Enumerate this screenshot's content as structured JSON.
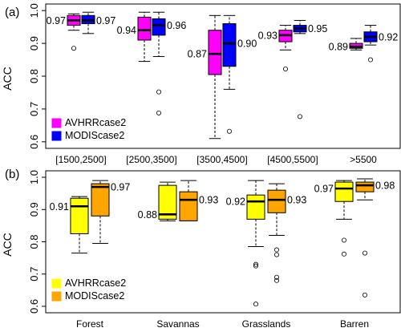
{
  "figure": {
    "panels": [
      {
        "id": "a",
        "label": "(a)",
        "ylabel": "ACC",
        "yticks": [
          "0.6",
          "0.7",
          "0.8",
          "0.9",
          "1.0"
        ],
        "legend": [
          "AVHRRcase2",
          "MODIScase2"
        ]
      },
      {
        "id": "b",
        "label": "(b)",
        "ylabel": "ACC",
        "yticks": [
          "0.6",
          "0.7",
          "0.8",
          "0.9",
          "1.0"
        ],
        "legend": [
          "AVHRRcase2",
          "MODIScase2"
        ]
      }
    ]
  },
  "chart_data": [
    {
      "type": "box",
      "panel_label": "(a)",
      "ylabel": "ACC",
      "ylim": [
        0.58,
        1.02
      ],
      "yticks": [
        0.6,
        0.7,
        0.8,
        0.9,
        1.0
      ],
      "categories": [
        "[1500,2500]",
        "[2500,3500]",
        "[3500,4500]",
        "[4500,5500]",
        ">5500"
      ],
      "legend_position": "bottom-left",
      "series": [
        {
          "name": "AVHRRcase2",
          "color": "#ff00ff",
          "boxes": [
            {
              "whisker_low": 0.94,
              "q1": 0.955,
              "median": 0.97,
              "q3": 0.985,
              "whisker_high": 0.99,
              "outliers": [
                0.885
              ],
              "label": "0.97"
            },
            {
              "whisker_low": 0.845,
              "q1": 0.91,
              "median": 0.94,
              "q3": 0.98,
              "whisker_high": 0.995,
              "outliers": [],
              "label": "0.94"
            },
            {
              "whisker_low": 0.61,
              "q1": 0.805,
              "median": 0.868,
              "q3": 0.94,
              "whisker_high": 0.985,
              "outliers": [],
              "label": "0.87"
            },
            {
              "whisker_low": 0.88,
              "q1": 0.905,
              "median": 0.925,
              "q3": 0.94,
              "whisker_high": 0.955,
              "outliers": [
                0.822
              ],
              "label": "0.93"
            },
            {
              "whisker_low": 0.88,
              "q1": 0.885,
              "median": 0.89,
              "q3": 0.9,
              "whisker_high": 0.915,
              "outliers": [],
              "label": "0.89"
            }
          ]
        },
        {
          "name": "MODIScase2",
          "color": "#0000ff",
          "boxes": [
            {
              "whisker_low": 0.93,
              "q1": 0.96,
              "median": 0.97,
              "q3": 0.985,
              "whisker_high": 0.995,
              "outliers": [],
              "label": "0.97"
            },
            {
              "whisker_low": 0.86,
              "q1": 0.925,
              "median": 0.955,
              "q3": 0.975,
              "whisker_high": 0.995,
              "outliers": [
                0.752,
                0.688
              ],
              "label": "0.96"
            },
            {
              "whisker_low": 0.76,
              "q1": 0.83,
              "median": 0.9,
              "q3": 0.96,
              "whisker_high": 0.985,
              "outliers": [
                0.632
              ],
              "label": "0.90"
            },
            {
              "whisker_low": 0.93,
              "q1": 0.935,
              "median": 0.945,
              "q3": 0.955,
              "whisker_high": 0.97,
              "outliers": [
                0.677
              ],
              "label": "0.95"
            },
            {
              "whisker_low": 0.895,
              "q1": 0.905,
              "median": 0.92,
              "q3": 0.935,
              "whisker_high": 0.955,
              "outliers": [
                0.85
              ],
              "label": "0.92"
            }
          ]
        }
      ]
    },
    {
      "type": "box",
      "panel_label": "(b)",
      "ylabel": "ACC",
      "ylim": [
        0.58,
        1.02
      ],
      "yticks": [
        0.6,
        0.7,
        0.8,
        0.9,
        1.0
      ],
      "categories": [
        "Forest",
        "Savannas",
        "Grasslands",
        "Barren"
      ],
      "legend_position": "bottom-left",
      "series": [
        {
          "name": "AVHRRcase2",
          "color": "#ffff00",
          "boxes": [
            {
              "whisker_low": 0.765,
              "q1": 0.825,
              "median": 0.91,
              "q3": 0.935,
              "whisker_high": 0.94,
              "outliers": [],
              "label": "0.91"
            },
            {
              "whisker_low": 0.865,
              "q1": 0.87,
              "median": 0.885,
              "q3": 0.975,
              "whisker_high": 0.985,
              "outliers": [],
              "label": "0.88"
            },
            {
              "whisker_low": 0.785,
              "q1": 0.87,
              "median": 0.925,
              "q3": 0.945,
              "whisker_high": 0.99,
              "outliers": [
                0.73,
                0.725,
                0.607
              ],
              "label": "0.92"
            },
            {
              "whisker_low": 0.87,
              "q1": 0.925,
              "median": 0.965,
              "q3": 0.985,
              "whisker_high": 0.99,
              "outliers": [
                0.805,
                0.762
              ],
              "label": "0.97"
            }
          ]
        },
        {
          "name": "MODIScase2",
          "color": "#ffa500",
          "boxes": [
            {
              "whisker_low": 0.795,
              "q1": 0.88,
              "median": 0.97,
              "q3": 0.98,
              "whisker_high": 0.99,
              "outliers": [],
              "label": "0.97"
            },
            {
              "whisker_low": 0.865,
              "q1": 0.865,
              "median": 0.93,
              "q3": 0.955,
              "whisker_high": 0.99,
              "outliers": [],
              "label": "0.93"
            },
            {
              "whisker_low": 0.82,
              "q1": 0.89,
              "median": 0.93,
              "q3": 0.96,
              "whisker_high": 0.98,
              "outliers": [
                0.775,
                0.76,
                0.69,
                0.68
              ],
              "label": "0.93"
            },
            {
              "whisker_low": 0.93,
              "q1": 0.955,
              "median": 0.975,
              "q3": 0.985,
              "whisker_high": 0.995,
              "outliers": [
                0.765,
                0.635
              ],
              "label": "0.98"
            }
          ]
        }
      ]
    }
  ]
}
